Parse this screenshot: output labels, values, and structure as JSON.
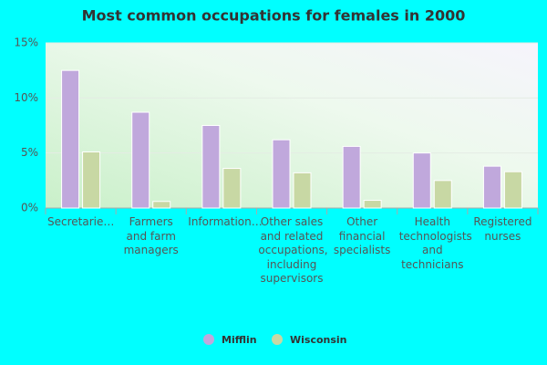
{
  "chart_data": {
    "type": "bar",
    "title": "Most common occupations for females in 2000",
    "categories": [
      "Secretarie…",
      "Farmers and farm managers",
      "Information…",
      "Other sales and related occupations, including supervisors",
      "Other financial specialists",
      "Health technologists and technicians",
      "Registered nurses"
    ],
    "series": [
      {
        "name": "Mifflin",
        "color": "#c0a8dc",
        "values": [
          12.5,
          8.7,
          7.5,
          6.2,
          5.6,
          5.0,
          3.8
        ]
      },
      {
        "name": "Wisconsin",
        "color": "#c8d8a4",
        "values": [
          5.1,
          0.6,
          3.6,
          3.2,
          0.7,
          2.5,
          3.3
        ]
      }
    ],
    "ylim": [
      0,
      15
    ],
    "yticks": [
      {
        "value": 0,
        "label": "0%"
      },
      {
        "value": 5,
        "label": "5%"
      },
      {
        "value": 10,
        "label": "10%"
      },
      {
        "value": 15,
        "label": "15%"
      }
    ],
    "grid": true,
    "legend": "bottom"
  }
}
